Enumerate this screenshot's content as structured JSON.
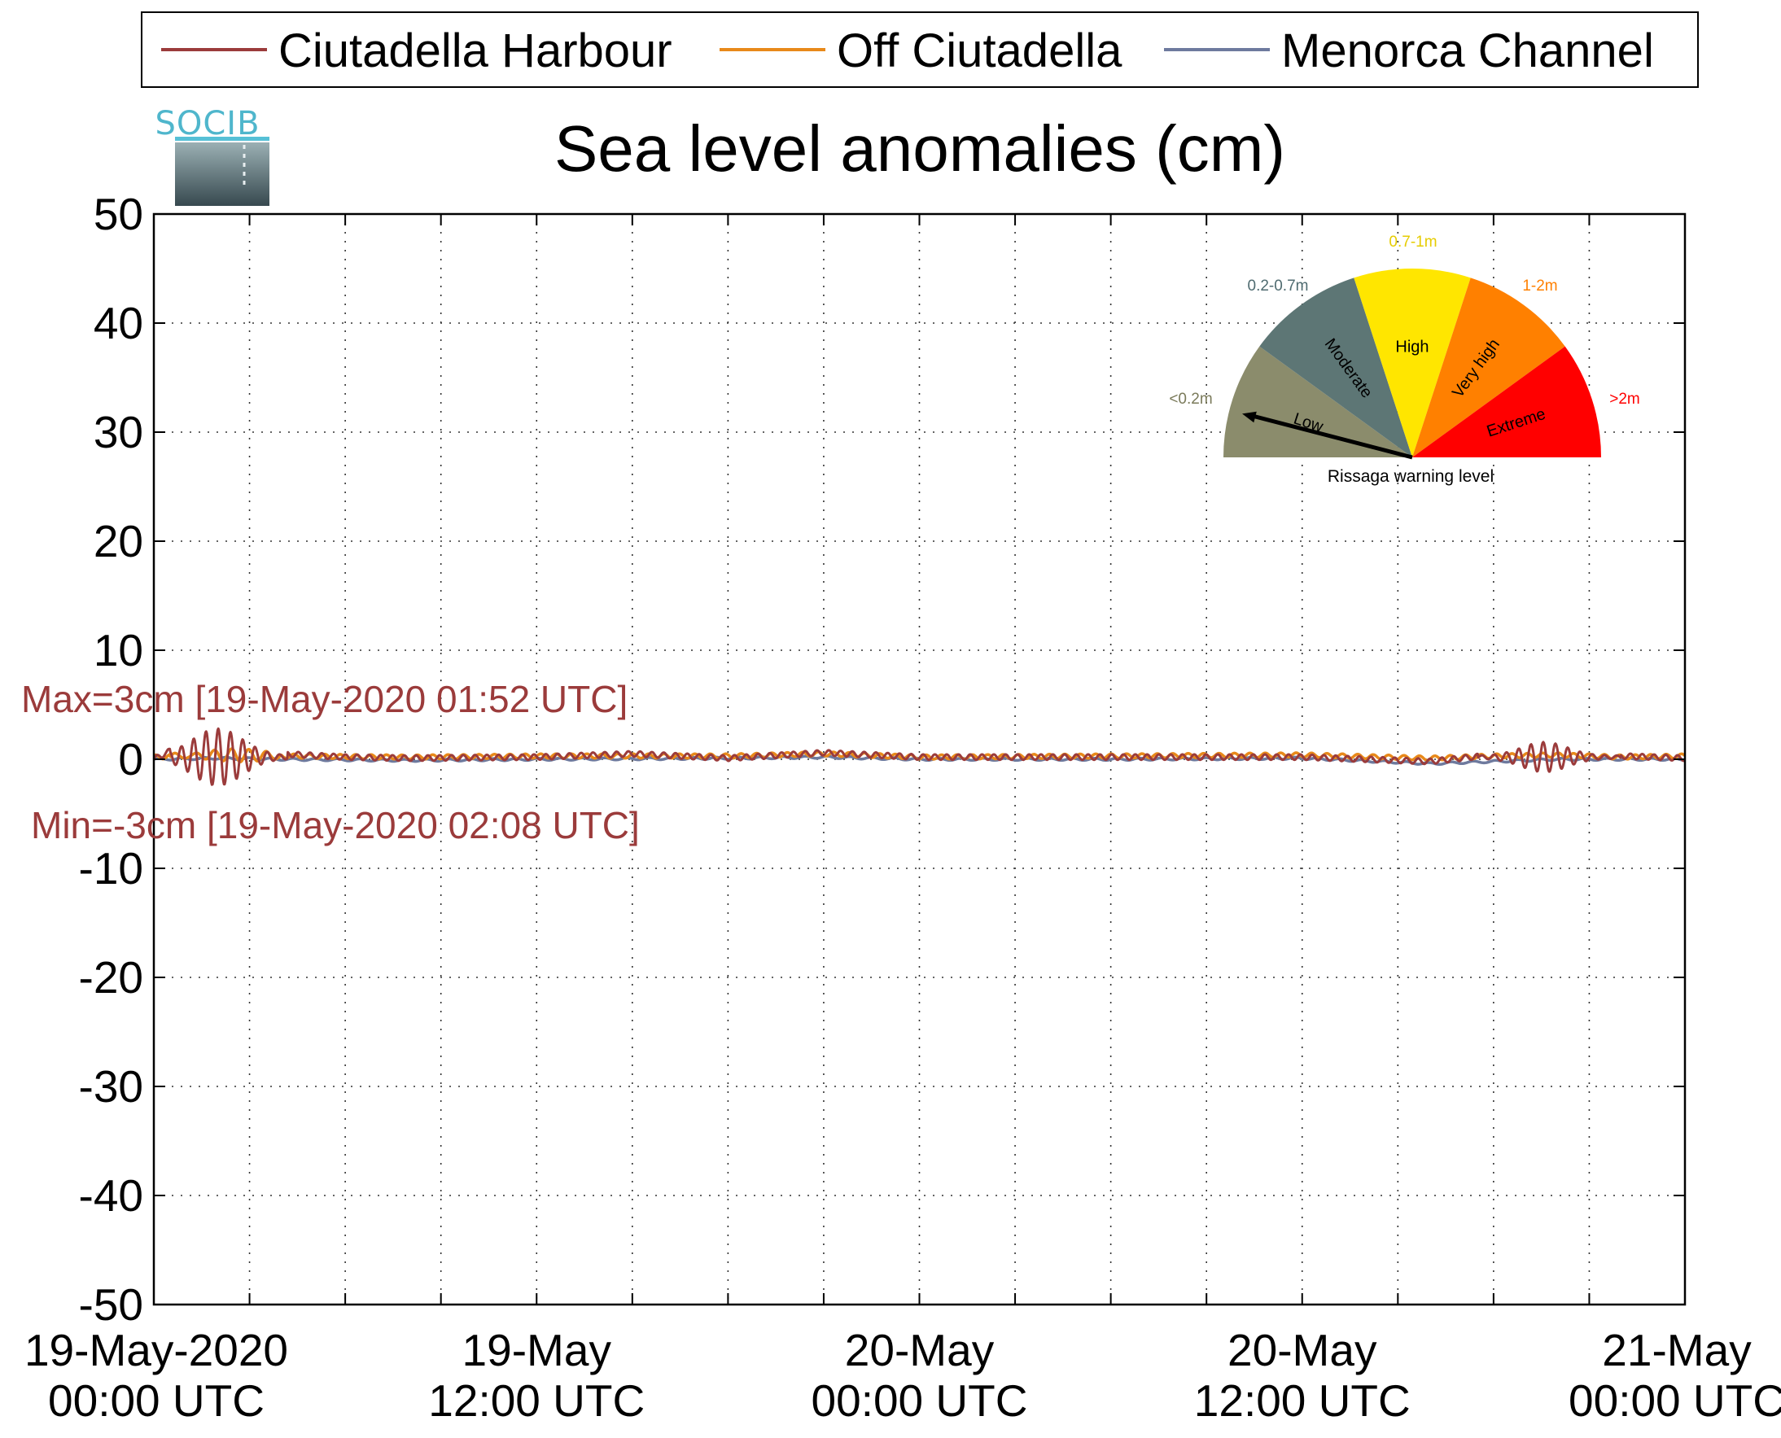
{
  "chart_data": {
    "type": "line",
    "title": "Sea level anomalies (cm)",
    "xlabel": "",
    "ylabel": "",
    "ylim": [
      -50,
      50
    ],
    "xlim": [
      "19-May-2020 00:00 UTC",
      "21-May-2020 00:00 UTC"
    ],
    "x_unit": "hours since 19-May-2020 00:00 UTC",
    "grid": true,
    "legend_position": "top",
    "yticks": [
      "50",
      "40",
      "30",
      "20",
      "10",
      "0",
      "-10",
      "-20",
      "-30",
      "-40",
      "-50"
    ],
    "xticks": [
      {
        "date": "19-May-2020",
        "time": "00:00 UTC"
      },
      {
        "date": "19-May",
        "time": "12:00 UTC"
      },
      {
        "date": "20-May",
        "time": "00:00 UTC"
      },
      {
        "date": "20-May",
        "time": "12:00 UTC"
      },
      {
        "date": "21-May",
        "time": "00:00 UTC"
      }
    ],
    "series": [
      {
        "name": "Ciutadella Harbour",
        "color": "#9b3b3b",
        "x": [
          0,
          1,
          1.87,
          2.13,
          3,
          4,
          6,
          8,
          12,
          15,
          18,
          21,
          24,
          30,
          36,
          40,
          42,
          43,
          44,
          45,
          46,
          48
        ],
        "y": [
          0,
          1.5,
          3,
          -3,
          1.5,
          0.5,
          0.2,
          0.1,
          0.2,
          0.5,
          0.1,
          0.6,
          0.2,
          0.2,
          0.2,
          -0.2,
          0.4,
          1.2,
          -1.2,
          0.8,
          0.3,
          0.1
        ]
      },
      {
        "name": "Off Ciutadella",
        "color": "#e8891a",
        "x": [
          0,
          2,
          4,
          8,
          12,
          18,
          21,
          24,
          30,
          36,
          40,
          42,
          44,
          46,
          48
        ],
        "y": [
          0.2,
          0.4,
          0.3,
          0.2,
          0.3,
          0.3,
          0.5,
          0.2,
          0.3,
          0.4,
          0.1,
          0.3,
          0.4,
          0.2,
          0.3
        ]
      },
      {
        "name": "Menorca Channel",
        "color": "#6e7a9e",
        "x": [
          0,
          2,
          4,
          8,
          12,
          18,
          21,
          24,
          30,
          36,
          40,
          42,
          44,
          46,
          48
        ],
        "y": [
          0,
          0.1,
          0,
          -0.1,
          0,
          0.1,
          0.2,
          0,
          0,
          0.1,
          -0.4,
          -0.2,
          0,
          0,
          0
        ]
      }
    ],
    "annotations": [
      {
        "text": "Max=3cm [19-May-2020 01:52 UTC]",
        "color": "#9b3b3b"
      },
      {
        "text": "Min=-3cm [19-May-2020 02:08 UTC]",
        "color": "#9b3b3b"
      }
    ]
  },
  "logo": {
    "text": "SOCIB"
  },
  "gauge": {
    "caption": "Rissaga warning level",
    "current_level": "Low",
    "needle_fraction": 0.08,
    "sectors": [
      {
        "label": "Low",
        "range": "<0.2m",
        "color": "#8b8c6c",
        "range_color": "#7a7a5a"
      },
      {
        "label": "Moderate",
        "range": "0.2-0.7m",
        "color": "#5d7675",
        "range_color": "#4f6b70"
      },
      {
        "label": "High",
        "range": "0.7-1m",
        "color": "#ffe600",
        "range_color": "#e6cc00"
      },
      {
        "label": "Very high",
        "range": "1-2m",
        "color": "#ff8000",
        "range_color": "#ff8000"
      },
      {
        "label": "Extreme",
        "range": ">2m",
        "color": "#ff0000",
        "range_color": "#ff0000"
      }
    ]
  }
}
